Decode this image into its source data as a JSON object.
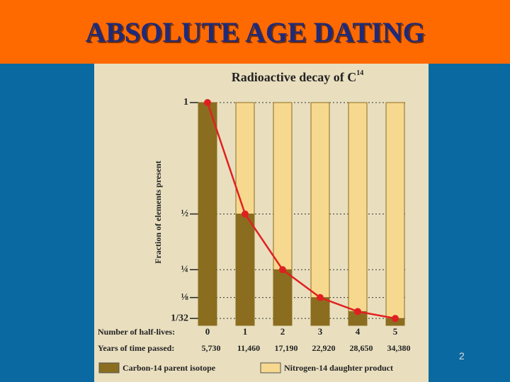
{
  "header": {
    "title": "ABSOLUTE AGE DATING"
  },
  "page_number": "2",
  "chart_data": {
    "type": "bar",
    "stacked": true,
    "title": "Radioactive decay of C",
    "title_superscript": "14",
    "y_label": "Fraction of elements present",
    "category_row_label": "Number of half-lives:",
    "x_row_label": "Years of time passed:",
    "categories": [
      "0",
      "1",
      "2",
      "3",
      "4",
      "5"
    ],
    "x": [
      "5,730",
      "11,460",
      "17,190",
      "22,920",
      "28,650",
      "34,380"
    ],
    "series": [
      {
        "name": "Carbon-14 parent isotope",
        "color": "#8b6d1f",
        "values": [
          1,
          0.5,
          0.25,
          0.125,
          0.0625,
          0.03125
        ]
      },
      {
        "name": "Nitrogen-14 daughter product",
        "color": "#f7d88f",
        "values": [
          0,
          0.5,
          0.75,
          0.875,
          0.9375,
          0.96875
        ]
      }
    ],
    "curve_color": "#e02020",
    "ylim": [
      0,
      1
    ],
    "yticks": [
      1,
      {
        "value": 0.5,
        "label": "½"
      },
      {
        "value": 0.25,
        "label": "¼"
      },
      {
        "value": 0.125,
        "label": "⅛"
      },
      {
        "value": 0.03125,
        "label": "1/32"
      }
    ],
    "grid": true
  }
}
